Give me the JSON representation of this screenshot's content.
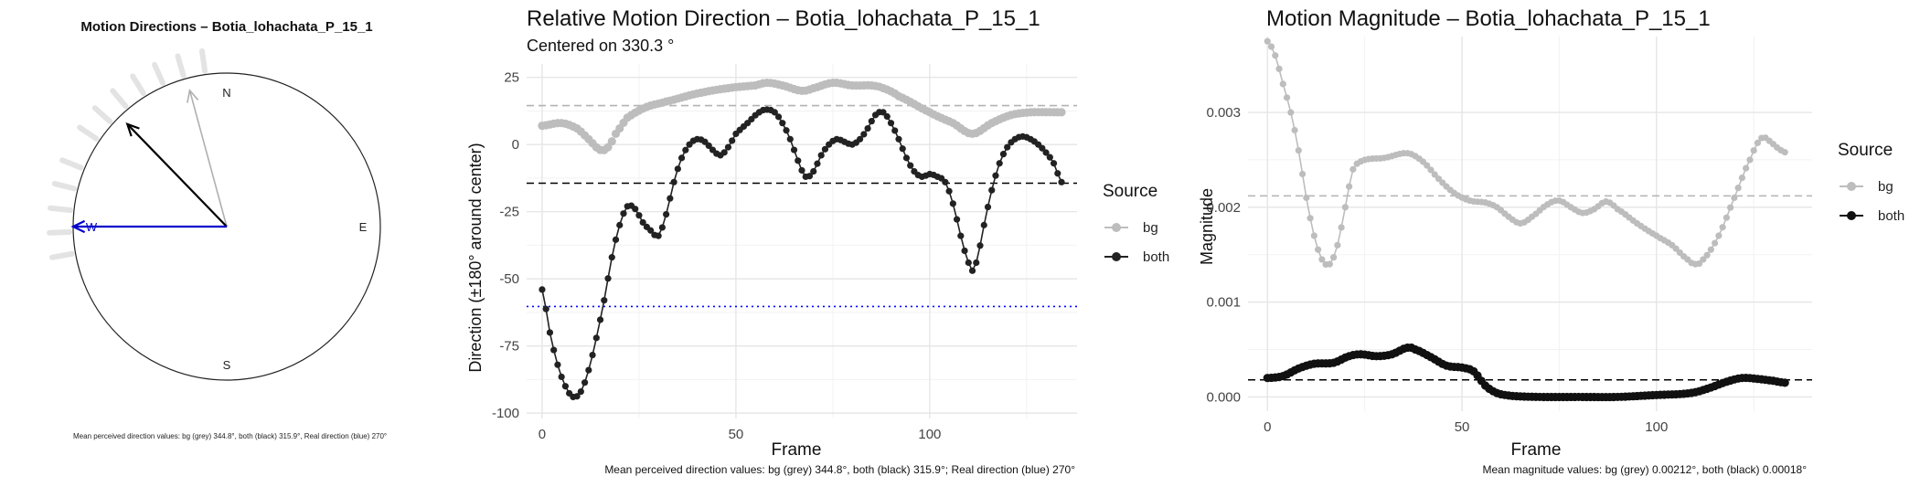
{
  "chart_data": [
    {
      "type": "polar",
      "title": "Motion Directions – Botia_lohachata_P_15_1",
      "compass": [
        "N",
        "E",
        "S",
        "W"
      ],
      "arrows": [
        {
          "name": "bg",
          "angle_deg": 344.8,
          "length": 0.92,
          "color": "#b0b0b0"
        },
        {
          "name": "both",
          "angle_deg": 315.9,
          "length": 0.93,
          "color": "#000000"
        },
        {
          "name": "real",
          "angle_deg": 270,
          "length": 1.0,
          "color": "#0000cc"
        }
      ],
      "rug_angles_deg": [
        304,
        312,
        320,
        328,
        336,
        344,
        352,
        292,
        284,
        276,
        268,
        260
      ],
      "caption": "Mean perceived direction values: bg (grey) 344.8°, both (black) 315.9°, Real direction (blue) 270°"
    },
    {
      "type": "line",
      "title": "Relative Motion Direction – Botia_lohachata_P_15_1",
      "subtitle": "Centered on  330.3 °",
      "xlabel": "Frame",
      "ylabel": "Direction (±180° around center)",
      "xlim": [
        -4,
        138
      ],
      "ylim": [
        -102,
        30
      ],
      "xticks": [
        0,
        50,
        100
      ],
      "yticks": [
        25,
        0,
        -25,
        -50,
        -75,
        -100
      ],
      "grid": true,
      "legend": {
        "title": "Source",
        "position": "right",
        "entries": [
          "bg",
          "both"
        ]
      },
      "ref_lines": [
        {
          "y": 14.5,
          "color": "#b3b3b3",
          "style": "dashed"
        },
        {
          "y": -14.4,
          "color": "#000000",
          "style": "dashed"
        },
        {
          "y": -60.3,
          "color": "#0000ff",
          "style": "dotted"
        }
      ],
      "series": [
        {
          "name": "bg",
          "color": "#bdbdbd",
          "style": "points-thick",
          "knots": [
            [
              0,
              7
            ],
            [
              5,
              8
            ],
            [
              9,
              6
            ],
            [
              12,
              2
            ],
            [
              15,
              -2
            ],
            [
              17,
              -1
            ],
            [
              19,
              4
            ],
            [
              22,
              10
            ],
            [
              27,
              14
            ],
            [
              32,
              16
            ],
            [
              40,
              19
            ],
            [
              48,
              21
            ],
            [
              55,
              22
            ],
            [
              58,
              23
            ],
            [
              62,
              22
            ],
            [
              67,
              20
            ],
            [
              70,
              21
            ],
            [
              75,
              23
            ],
            [
              80,
              22
            ],
            [
              85,
              22
            ],
            [
              88,
              21
            ],
            [
              92,
              18
            ],
            [
              100,
              12
            ],
            [
              106,
              8
            ],
            [
              111,
              4
            ],
            [
              116,
              8
            ],
            [
              121,
              11
            ],
            [
              126,
              12
            ],
            [
              134,
              12
            ]
          ]
        },
        {
          "name": "both",
          "color": "#222222",
          "style": "points-line",
          "knots": [
            [
              0,
              -54
            ],
            [
              2,
              -70
            ],
            [
              4,
              -82
            ],
            [
              6,
              -90
            ],
            [
              8,
              -94
            ],
            [
              10,
              -92
            ],
            [
              12,
              -84
            ],
            [
              14,
              -72
            ],
            [
              16,
              -58
            ],
            [
              18,
              -42
            ],
            [
              20,
              -30
            ],
            [
              22,
              -23
            ],
            [
              24,
              -24
            ],
            [
              26,
              -29
            ],
            [
              28,
              -32
            ],
            [
              30,
              -34
            ],
            [
              32,
              -26
            ],
            [
              34,
              -14
            ],
            [
              36,
              -5
            ],
            [
              38,
              0
            ],
            [
              40,
              2
            ],
            [
              42,
              1
            ],
            [
              44,
              -2
            ],
            [
              46,
              -4
            ],
            [
              48,
              -1
            ],
            [
              50,
              4
            ],
            [
              53,
              8
            ],
            [
              56,
              12
            ],
            [
              58,
              13
            ],
            [
              60,
              12
            ],
            [
              62,
              8
            ],
            [
              64,
              2
            ],
            [
              66,
              -6
            ],
            [
              68,
              -12
            ],
            [
              70,
              -10
            ],
            [
              72,
              -4
            ],
            [
              74,
              0
            ],
            [
              76,
              2
            ],
            [
              78,
              1
            ],
            [
              80,
              0
            ],
            [
              82,
              2
            ],
            [
              84,
              6
            ],
            [
              86,
              11
            ],
            [
              88,
              12
            ],
            [
              90,
              8
            ],
            [
              92,
              2
            ],
            [
              94,
              -5
            ],
            [
              96,
              -10
            ],
            [
              98,
              -12
            ],
            [
              100,
              -11
            ],
            [
              102,
              -12
            ],
            [
              104,
              -14
            ],
            [
              106,
              -22
            ],
            [
              108,
              -34
            ],
            [
              110,
              -44
            ],
            [
              111,
              -47
            ],
            [
              112,
              -44
            ],
            [
              114,
              -30
            ],
            [
              116,
              -17
            ],
            [
              118,
              -7
            ],
            [
              120,
              -1
            ],
            [
              122,
              2
            ],
            [
              124,
              3
            ],
            [
              126,
              2
            ],
            [
              128,
              0
            ],
            [
              130,
              -3
            ],
            [
              132,
              -7
            ],
            [
              134,
              -14
            ]
          ]
        }
      ],
      "caption": "Mean perceived direction values: bg (grey) 344.8°, both (black) 315.9°; Real direction (blue) 270°"
    },
    {
      "type": "line",
      "title": "Motion Magnitude – Botia_lohachata_P_15_1",
      "xlabel": "Frame",
      "ylabel": "Magnitude",
      "xlim": [
        -5,
        140
      ],
      "ylim": [
        -0.00015,
        0.0038
      ],
      "xticks": [
        0,
        50,
        100
      ],
      "yticks": [
        0.003,
        0.002,
        0.001,
        0.0
      ],
      "ytick_labels": [
        "0.003",
        "0.002",
        "0.001",
        "0.000"
      ],
      "grid": true,
      "legend": {
        "title": "Source",
        "position": "right",
        "entries": [
          "bg",
          "both"
        ]
      },
      "ref_lines": [
        {
          "y": 0.00212,
          "color": "#b3b3b3",
          "style": "dashed"
        },
        {
          "y": 0.00018,
          "color": "#000000",
          "style": "dashed"
        }
      ],
      "series": [
        {
          "name": "bg",
          "color": "#bdbdbd",
          "style": "points-line",
          "knots": [
            [
              0,
              0.00375
            ],
            [
              2,
              0.0036
            ],
            [
              4,
              0.0033
            ],
            [
              6,
              0.003
            ],
            [
              8,
              0.0026
            ],
            [
              10,
              0.0021
            ],
            [
              12,
              0.0017
            ],
            [
              14,
              0.00145
            ],
            [
              16,
              0.0014
            ],
            [
              18,
              0.0016
            ],
            [
              20,
              0.002
            ],
            [
              22,
              0.0024
            ],
            [
              25,
              0.0025
            ],
            [
              30,
              0.00252
            ],
            [
              36,
              0.00257
            ],
            [
              40,
              0.00248
            ],
            [
              44,
              0.0023
            ],
            [
              48,
              0.00215
            ],
            [
              52,
              0.00207
            ],
            [
              56,
              0.00205
            ],
            [
              59,
              0.002
            ],
            [
              62,
              0.0019
            ],
            [
              65,
              0.00183
            ],
            [
              68,
              0.0019
            ],
            [
              72,
              0.00203
            ],
            [
              75,
              0.00207
            ],
            [
              78,
              0.002
            ],
            [
              81,
              0.00194
            ],
            [
              84,
              0.00198
            ],
            [
              87,
              0.00206
            ],
            [
              90,
              0.00198
            ],
            [
              95,
              0.00183
            ],
            [
              100,
              0.0017
            ],
            [
              104,
              0.0016
            ],
            [
              108,
              0.00145
            ],
            [
              110,
              0.0014
            ],
            [
              112,
              0.00145
            ],
            [
              116,
              0.0017
            ],
            [
              120,
              0.0021
            ],
            [
              124,
              0.0025
            ],
            [
              127,
              0.00273
            ],
            [
              129,
              0.0027
            ],
            [
              131,
              0.00263
            ],
            [
              133,
              0.00258
            ]
          ]
        },
        {
          "name": "both",
          "color": "#111111",
          "style": "points-thick",
          "knots": [
            [
              0,
              0.0002
            ],
            [
              4,
              0.00022
            ],
            [
              8,
              0.0003
            ],
            [
              12,
              0.00035
            ],
            [
              17,
              0.00036
            ],
            [
              21,
              0.00043
            ],
            [
              24,
              0.00045
            ],
            [
              28,
              0.00043
            ],
            [
              32,
              0.00045
            ],
            [
              36,
              0.00052
            ],
            [
              38,
              0.0005
            ],
            [
              42,
              0.00042
            ],
            [
              46,
              0.00033
            ],
            [
              50,
              0.00031
            ],
            [
              53,
              0.00027
            ],
            [
              56,
              0.00012
            ],
            [
              59,
              4e-05
            ],
            [
              63,
              1e-05
            ],
            [
              70,
              0.0
            ],
            [
              80,
              0.0
            ],
            [
              90,
              0.0
            ],
            [
              100,
              2e-05
            ],
            [
              106,
              3e-05
            ],
            [
              110,
              5e-05
            ],
            [
              114,
              0.0001
            ],
            [
              118,
              0.00016
            ],
            [
              122,
              0.0002
            ],
            [
              126,
              0.00019
            ],
            [
              130,
              0.00017
            ],
            [
              133,
              0.00015
            ]
          ]
        }
      ],
      "caption": "Mean magnitude values: bg (grey) 0.00212°, both (black) 0.00018°"
    }
  ]
}
